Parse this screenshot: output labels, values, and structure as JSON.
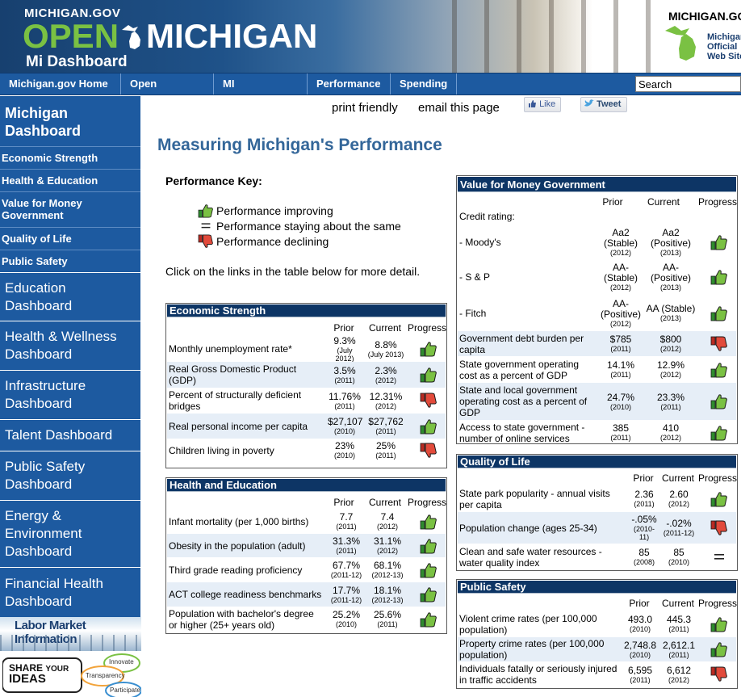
{
  "header": {
    "site": "MICHIGAN.GOV",
    "brand_open": "OPEN",
    "brand_michigan": "MICHIGAN",
    "brand_sub": "Mi Dashboard",
    "top_right": "MICHIGAN.GOV",
    "official_web_site": [
      "Michigan's",
      "Official",
      "Web Site"
    ]
  },
  "nav": {
    "items": [
      "Michigan.gov Home",
      "Open Michigan",
      "MI Dashboards",
      "Performance",
      "Spending"
    ],
    "search_value": "Search"
  },
  "sidebar": {
    "title": "Michigan Dashboard",
    "sub_items": [
      "Economic Strength",
      "Health & Education",
      "Value for Money Government",
      "Quality of Life",
      "Public Safety"
    ],
    "dashboards": [
      "Education Dashboard",
      "Health & Wellness Dashboard",
      "Infrastructure Dashboard",
      "Talent Dashboard",
      "Public Safety Dashboard",
      "Energy & Environment Dashboard",
      "Financial Health Dashboard"
    ],
    "labor_market": "Labor Market Information",
    "share_ideas": [
      "SHARE",
      "YOUR",
      "IDEAS"
    ],
    "share_bubbles": [
      "Innovate",
      "Transparency",
      "Participate"
    ]
  },
  "toolbar": {
    "print": "print friendly",
    "email": "email this page",
    "like": "Like",
    "tweet": "Tweet"
  },
  "page_title": "Measuring Michigan's Performance",
  "key": {
    "title": "Performance Key:",
    "improving": "Performance improving",
    "same": "Performance staying about the same",
    "declining": "Performance declining",
    "note": "Click on the links in the table below for more detail."
  },
  "columns": {
    "prior": "Prior",
    "current": "Current",
    "progress": "Progress"
  },
  "economic": {
    "title": "Economic Strength",
    "rows": [
      {
        "label": "Monthly unemployment rate*",
        "prior": "9.3%",
        "prior_yr": "(July 2012)",
        "current": "8.8%",
        "current_yr": "(July 2013)",
        "progress": "up"
      },
      {
        "label": "Real Gross Domestic Product (GDP)",
        "prior": "3.5%",
        "prior_yr": "(2011)",
        "current": "2.3%",
        "current_yr": "(2012)",
        "progress": "up"
      },
      {
        "label": "Percent of structurally deficient bridges",
        "prior": "11.76%",
        "prior_yr": "(2011)",
        "current": "12.31%",
        "current_yr": "(2012)",
        "progress": "down"
      },
      {
        "label": "Real personal income per capita",
        "prior": "$27,107",
        "prior_yr": "(2010)",
        "current": "$27,762",
        "current_yr": "(2011)",
        "progress": "up"
      },
      {
        "label": "Children living in poverty",
        "prior": "23%",
        "prior_yr": "(2010)",
        "current": "25%",
        "current_yr": "(2011)",
        "progress": "down"
      }
    ]
  },
  "health": {
    "title": "Health and Education",
    "rows": [
      {
        "label": "Infant mortality (per 1,000 births)",
        "prior": "7.7",
        "prior_yr": "(2011)",
        "current": "7.4",
        "current_yr": "(2012)",
        "progress": "up"
      },
      {
        "label": "Obesity in the population (adult)",
        "prior": "31.3%",
        "prior_yr": "(2011)",
        "current": "31.1%",
        "current_yr": "(2012)",
        "progress": "up"
      },
      {
        "label": "Third grade reading proficiency",
        "prior": "67.7%",
        "prior_yr": "(2011-12)",
        "current": "68.1%",
        "current_yr": "(2012-13)",
        "progress": "up"
      },
      {
        "label": "ACT college readiness benchmarks",
        "prior": "17.7%",
        "prior_yr": "(2011-12)",
        "current": "18.1%",
        "current_yr": "(2012-13)",
        "progress": "up"
      },
      {
        "label": "Population with bachelor's degree or higher (25+ years old)",
        "prior": "25.2%",
        "prior_yr": "(2010)",
        "current": "25.6%",
        "current_yr": "(2011)",
        "progress": "up"
      }
    ]
  },
  "value": {
    "title": "Value for Money Government",
    "credit_label": "Credit rating:",
    "rows": [
      {
        "label": "- Moody's",
        "prior": "Aa2 (Stable)",
        "prior_yr": "(2012)",
        "current": "Aa2 (Positive)",
        "current_yr": "(2013)",
        "progress": "up"
      },
      {
        "label": "- S & P",
        "prior": "AA- (Stable)",
        "prior_yr": "(2012)",
        "current": "AA- (Positive)",
        "current_yr": "(2013)",
        "progress": "up"
      },
      {
        "label": "- Fitch",
        "prior": "AA- (Positive)",
        "prior_yr": "(2012)",
        "current": "AA (Stable)",
        "current_yr": "(2013)",
        "progress": "up"
      },
      {
        "label": "Government debt burden per capita",
        "prior": "$785",
        "prior_yr": "(2011)",
        "current": "$800",
        "current_yr": "(2012)",
        "progress": "down"
      },
      {
        "label": "State government operating cost as a percent of GDP",
        "prior": "14.1%",
        "prior_yr": "(2011)",
        "current": "12.9%",
        "current_yr": "(2012)",
        "progress": "up"
      },
      {
        "label": "State and local government operating cost as a percent of GDP",
        "prior": "24.7%",
        "prior_yr": "(2010)",
        "current": "23.3%",
        "current_yr": "(2011)",
        "progress": "up"
      },
      {
        "label": "Access to state government - number of online services",
        "prior": "385",
        "prior_yr": "(2011)",
        "current": "410",
        "current_yr": "(2012)",
        "progress": "up"
      }
    ]
  },
  "quality": {
    "title": "Quality of Life",
    "rows": [
      {
        "label": "State park popularity - annual visits per capita",
        "prior": "2.36",
        "prior_yr": "(2011)",
        "current": "2.60",
        "current_yr": "(2012)",
        "progress": "up"
      },
      {
        "label": "Population change (ages 25-34)",
        "prior": "-.05%",
        "prior_yr": "(2010-11)",
        "current": "-.02%",
        "current_yr": "(2011-12)",
        "progress": "down"
      },
      {
        "label": "Clean and safe water resources - water quality index",
        "prior": "85",
        "prior_yr": "(2008)",
        "current": "85",
        "current_yr": "(2010)",
        "progress": "same"
      }
    ]
  },
  "safety": {
    "title": "Public Safety",
    "rows": [
      {
        "label": "Violent crime rates (per 100,000 population)",
        "prior": "493.0",
        "prior_yr": "(2010)",
        "current": "445.3",
        "current_yr": "(2011)",
        "progress": "up"
      },
      {
        "label": "Property crime rates (per 100,000 population)",
        "prior": "2,748.8",
        "prior_yr": "(2010)",
        "current": "2,612.1",
        "current_yr": "(2011)",
        "progress": "up"
      },
      {
        "label": "Individuals fatally or seriously injured in traffic accidents",
        "prior": "6,595",
        "prior_yr": "(2011)",
        "current": "6,612",
        "current_yr": "(2012)",
        "progress": "down"
      }
    ]
  },
  "colors": {
    "nav_blue": "#1d5aa0",
    "panel_header": "#0d3565",
    "title_blue": "#336699",
    "thumb_green": "#3aa935",
    "thumb_red": "#d23b2e"
  },
  "icons": {
    "improving": "thumbs-up-icon",
    "declining": "thumbs-down-icon",
    "same": "equals-icon"
  }
}
